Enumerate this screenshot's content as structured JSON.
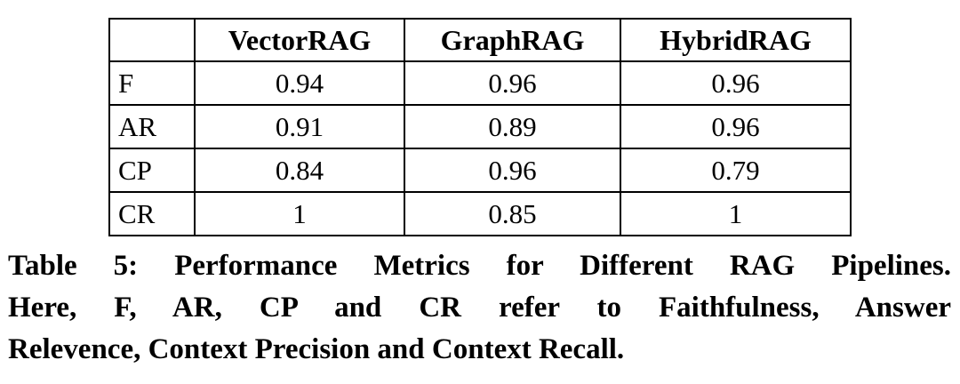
{
  "table": {
    "columns": [
      "",
      "VectorRAG",
      "GraphRAG",
      "HybridRAG"
    ],
    "rows": [
      {
        "label": "F",
        "values": [
          "0.94",
          "0.96",
          "0.96"
        ]
      },
      {
        "label": "AR",
        "values": [
          "0.91",
          "0.89",
          "0.96"
        ]
      },
      {
        "label": "CP",
        "values": [
          "0.84",
          "0.96",
          "0.79"
        ]
      },
      {
        "label": "CR",
        "values": [
          "1",
          "0.85",
          "1"
        ]
      }
    ]
  },
  "caption": {
    "lines": [
      "Table 5: Performance Metrics for Different RAG Pipelines.",
      "Here, F, AR, CP and CR refer to Faithfulness, Answer",
      "Relevence, Context Precision and Context Recall."
    ]
  }
}
